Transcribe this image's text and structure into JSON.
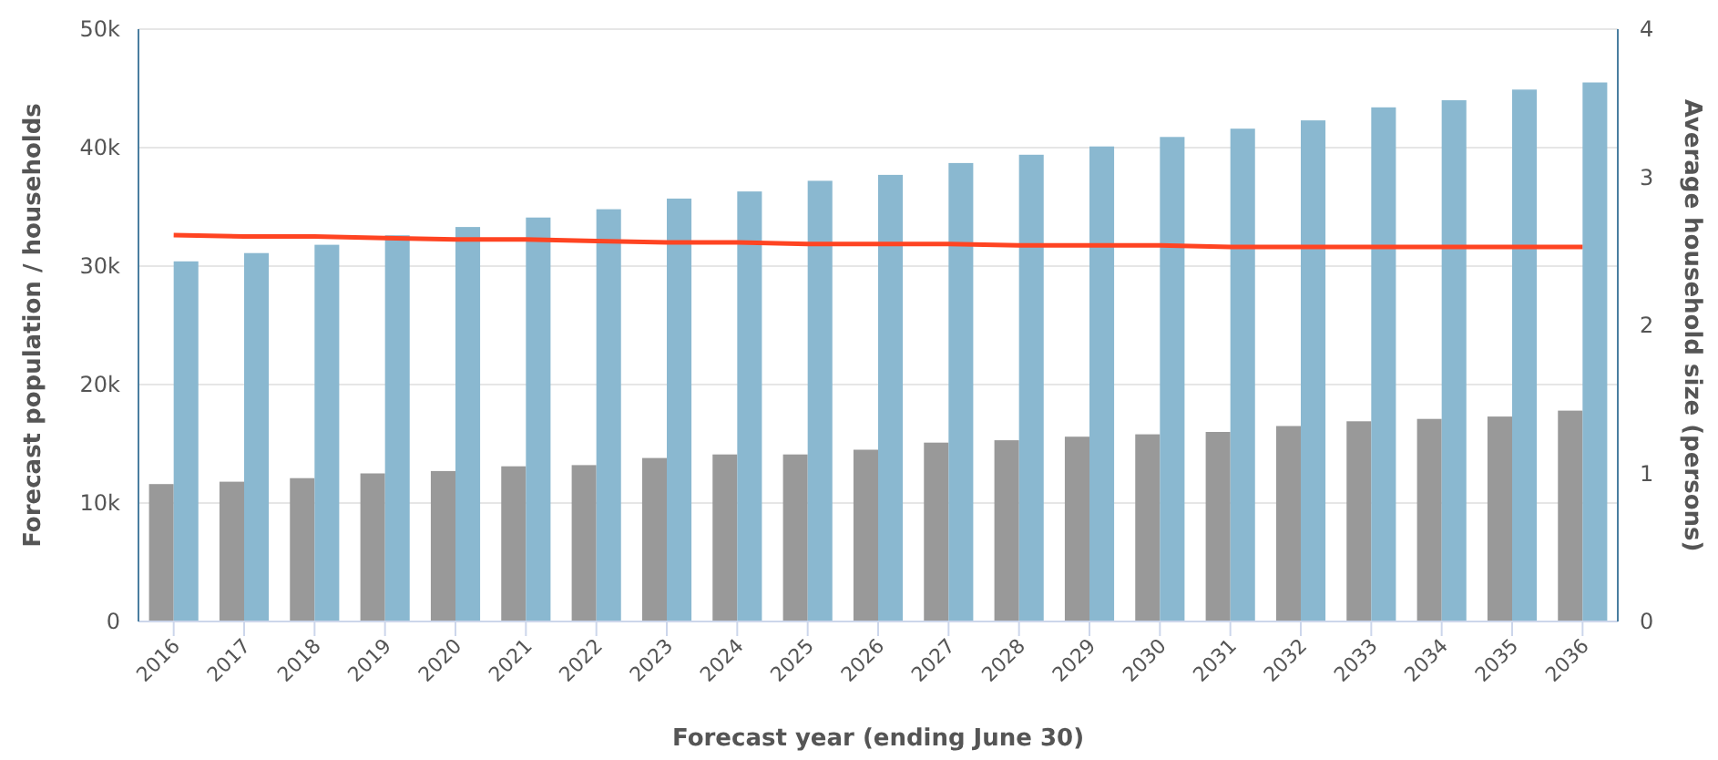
{
  "chart_data": {
    "type": "bar",
    "xlabel": "Forecast year (ending June 30)",
    "ylabel": "Forecast population / households",
    "y2label": "Average household size (persons)",
    "categories": [
      "2016",
      "2017",
      "2018",
      "2019",
      "2020",
      "2021",
      "2022",
      "2023",
      "2024",
      "2025",
      "2026",
      "2027",
      "2028",
      "2029",
      "2030",
      "2031",
      "2032",
      "2033",
      "2034",
      "2035",
      "2036"
    ],
    "series": [
      {
        "color": "#999999",
        "values": [
          11600,
          11800,
          12100,
          12500,
          12700,
          13100,
          13200,
          13800,
          14100,
          14100,
          14500,
          15100,
          15300,
          15600,
          15800,
          16000,
          16500,
          16900,
          17100,
          17300,
          17800
        ]
      },
      {
        "color": "#8ab8d0",
        "values": [
          30400,
          31100,
          31800,
          32600,
          33300,
          34100,
          34800,
          35700,
          36300,
          37200,
          37700,
          38700,
          39400,
          40100,
          40900,
          41600,
          42300,
          43400,
          44000,
          44900,
          45500
        ]
      },
      {
        "type": "line",
        "axis": "y2",
        "color": "#ff4422",
        "values": [
          2.61,
          2.6,
          2.6,
          2.59,
          2.58,
          2.58,
          2.57,
          2.56,
          2.56,
          2.55,
          2.55,
          2.55,
          2.54,
          2.54,
          2.54,
          2.53,
          2.53,
          2.53,
          2.53,
          2.53,
          2.53
        ]
      }
    ],
    "ylim": [
      0,
      50000
    ],
    "yticks": [
      {
        "value": 0,
        "label": "0"
      },
      {
        "value": 10000,
        "label": "10k"
      },
      {
        "value": 20000,
        "label": "20k"
      },
      {
        "value": 30000,
        "label": "30k"
      },
      {
        "value": 40000,
        "label": "40k"
      },
      {
        "value": 50000,
        "label": "50k"
      }
    ],
    "y2lim": [
      0,
      4
    ],
    "y2ticks": [
      0,
      1,
      2,
      3,
      4
    ],
    "grid": "y",
    "marker": "none",
    "line_style": "solid"
  }
}
